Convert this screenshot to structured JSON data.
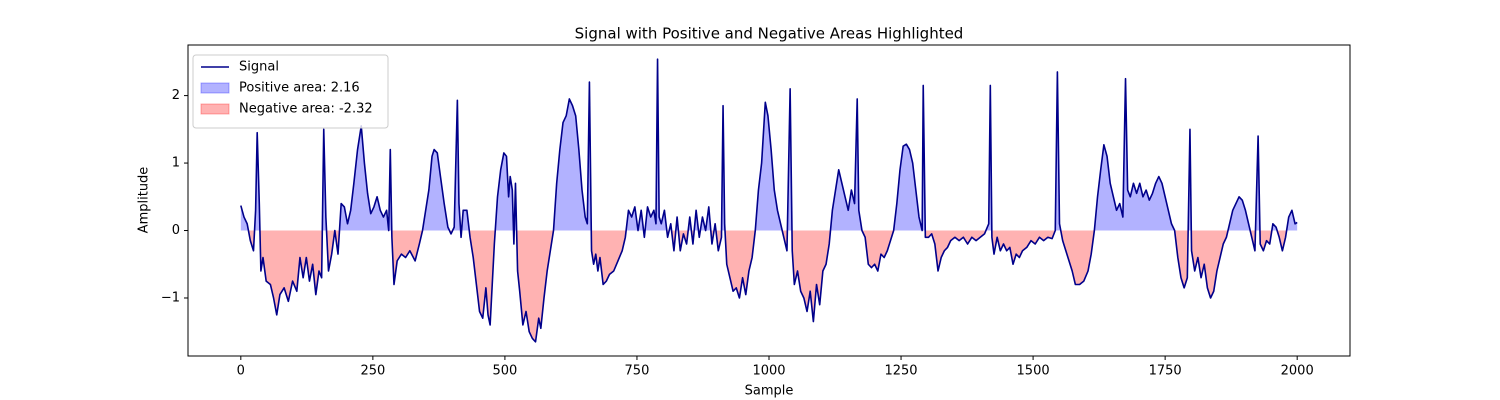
{
  "chart_data": {
    "type": "line",
    "title": "Signal with Positive and Negative Areas Highlighted",
    "xlabel": "Sample",
    "ylabel": "Amplitude",
    "x": [
      0,
      6,
      12,
      18,
      24,
      28,
      31,
      35,
      38,
      42,
      48,
      56,
      62,
      68,
      74,
      82,
      90,
      98,
      106,
      112,
      118,
      124,
      130,
      136,
      142,
      148,
      153,
      157,
      161,
      166,
      172,
      178,
      184,
      190,
      196,
      202,
      208,
      214,
      221,
      228,
      234,
      240,
      246,
      252,
      258,
      264,
      270,
      276,
      280,
      283,
      286,
      290,
      296,
      304,
      312,
      320,
      330,
      338,
      344,
      350,
      356,
      362,
      366,
      372,
      378,
      385,
      392,
      398,
      404,
      410,
      413,
      417,
      421,
      428,
      434,
      440,
      446,
      452,
      458,
      464,
      468,
      472,
      476,
      480,
      486,
      492,
      498,
      503,
      507,
      510,
      514,
      517,
      520,
      524,
      528,
      534,
      540,
      546,
      552,
      558,
      564,
      568,
      574,
      580,
      586,
      592,
      598,
      604,
      610,
      616,
      622,
      628,
      634,
      640,
      646,
      652,
      656,
      660,
      664,
      668,
      672,
      676,
      680,
      686,
      692,
      698,
      706,
      714,
      722,
      728,
      734,
      740,
      746,
      752,
      758,
      764,
      770,
      776,
      782,
      786,
      789,
      792,
      796,
      802,
      808,
      814,
      820,
      826,
      832,
      838,
      844,
      850,
      856,
      862,
      868,
      874,
      880,
      886,
      892,
      898,
      904,
      910,
      913,
      916,
      920,
      926,
      932,
      938,
      944,
      950,
      956,
      962,
      968,
      974,
      980,
      986,
      993,
      998,
      1004,
      1010,
      1016,
      1022,
      1028,
      1034,
      1040,
      1044,
      1048,
      1054,
      1060,
      1066,
      1072,
      1078,
      1084,
      1090,
      1096,
      1102,
      1108,
      1114,
      1120,
      1126,
      1132,
      1138,
      1144,
      1150,
      1156,
      1162,
      1167,
      1170,
      1176,
      1182,
      1188,
      1194,
      1200,
      1206,
      1212,
      1218,
      1224,
      1230,
      1236,
      1242,
      1248,
      1254,
      1260,
      1266,
      1272,
      1278,
      1284,
      1290,
      1292,
      1296,
      1302,
      1308,
      1314,
      1320,
      1326,
      1332,
      1338,
      1344,
      1352,
      1360,
      1368,
      1376,
      1384,
      1392,
      1400,
      1408,
      1416,
      1419,
      1422,
      1426,
      1432,
      1438,
      1444,
      1450,
      1456,
      1462,
      1468,
      1474,
      1480,
      1488,
      1496,
      1504,
      1512,
      1520,
      1528,
      1536,
      1542,
      1546,
      1550,
      1556,
      1562,
      1568,
      1574,
      1580,
      1588,
      1596,
      1604,
      1610,
      1616,
      1622,
      1628,
      1634,
      1640,
      1646,
      1652,
      1658,
      1664,
      1670,
      1675,
      1679,
      1684,
      1690,
      1696,
      1702,
      1708,
      1714,
      1720,
      1726,
      1732,
      1738,
      1744,
      1750,
      1756,
      1762,
      1768,
      1774,
      1780,
      1786,
      1792,
      1797,
      1800,
      1806,
      1812,
      1818,
      1824,
      1830,
      1836,
      1842,
      1848,
      1854,
      1860,
      1866,
      1872,
      1878,
      1884,
      1890,
      1896,
      1902,
      1908,
      1914,
      1920,
      1926,
      1930,
      1936,
      1942,
      1948,
      1954,
      1960,
      1966,
      1972,
      1978,
      1984,
      1990,
      1996,
      2000
    ],
    "series": [
      {
        "name": "Signal",
        "color": "#00008b",
        "values": [
          0.37,
          0.2,
          0.1,
          -0.15,
          -0.3,
          0.3,
          1.45,
          0.4,
          -0.6,
          -0.4,
          -0.75,
          -0.8,
          -1.0,
          -1.25,
          -0.95,
          -0.85,
          -1.05,
          -0.75,
          -0.9,
          -0.4,
          -0.7,
          -0.4,
          -0.75,
          -0.5,
          -0.95,
          -0.6,
          -0.7,
          1.5,
          0.2,
          -0.6,
          -0.35,
          0.0,
          -0.35,
          0.4,
          0.35,
          0.1,
          0.3,
          0.7,
          1.2,
          1.55,
          1.0,
          0.55,
          0.25,
          0.35,
          0.5,
          0.3,
          0.2,
          0.3,
          0.0,
          1.2,
          -0.1,
          -0.8,
          -0.45,
          -0.35,
          -0.4,
          -0.3,
          -0.45,
          -0.2,
          0.0,
          0.3,
          0.6,
          1.1,
          1.2,
          1.15,
          0.8,
          0.4,
          0.05,
          -0.05,
          0.05,
          1.93,
          0.4,
          -0.1,
          0.3,
          0.3,
          -0.1,
          -0.4,
          -0.8,
          -1.2,
          -1.3,
          -0.85,
          -1.25,
          -1.4,
          -0.8,
          -0.2,
          0.5,
          0.9,
          1.15,
          1.1,
          0.5,
          0.8,
          0.6,
          -0.2,
          0.7,
          -0.6,
          -0.9,
          -1.4,
          -1.2,
          -1.5,
          -1.6,
          -1.65,
          -1.3,
          -1.45,
          -1.0,
          -0.6,
          -0.3,
          0.0,
          0.7,
          1.2,
          1.6,
          1.7,
          1.95,
          1.85,
          1.7,
          1.2,
          0.6,
          0.2,
          0.1,
          2.2,
          -0.3,
          -0.5,
          -0.35,
          -0.6,
          -0.4,
          -0.8,
          -0.75,
          -0.65,
          -0.6,
          -0.45,
          -0.3,
          -0.1,
          0.3,
          0.2,
          0.35,
          0.0,
          0.3,
          -0.1,
          0.35,
          0.2,
          0.3,
          0.1,
          2.54,
          0.2,
          0.1,
          0.3,
          -0.1,
          0.1,
          -0.3,
          0.2,
          -0.3,
          -0.05,
          -0.2,
          0.2,
          -0.2,
          0.3,
          -0.1,
          0.2,
          0.0,
          0.35,
          -0.2,
          0.1,
          -0.3,
          -0.1,
          1.85,
          0.1,
          -0.5,
          -0.7,
          -0.9,
          -0.85,
          -1.0,
          -0.7,
          -0.95,
          -0.6,
          -0.4,
          0.0,
          0.6,
          1.0,
          1.9,
          1.7,
          1.2,
          0.6,
          0.3,
          0.1,
          -0.1,
          -0.3,
          2.1,
          -0.3,
          -0.8,
          -0.6,
          -0.9,
          -1.0,
          -1.2,
          -0.9,
          -1.35,
          -0.8,
          -1.1,
          -0.6,
          -0.5,
          -0.2,
          0.3,
          0.6,
          0.9,
          0.7,
          0.5,
          0.3,
          0.6,
          0.4,
          1.95,
          0.3,
          0.0,
          -0.1,
          -0.5,
          -0.55,
          -0.5,
          -0.6,
          -0.35,
          -0.4,
          -0.3,
          -0.15,
          0.0,
          0.4,
          0.9,
          1.25,
          1.28,
          1.2,
          1.0,
          0.6,
          0.2,
          0.0,
          2.15,
          -0.1,
          -0.1,
          -0.05,
          -0.2,
          -0.6,
          -0.4,
          -0.3,
          -0.25,
          -0.15,
          -0.1,
          -0.15,
          -0.1,
          -0.2,
          -0.1,
          -0.15,
          -0.1,
          -0.05,
          0.1,
          2.15,
          -0.1,
          -0.35,
          -0.1,
          -0.3,
          -0.2,
          -0.3,
          -0.25,
          -0.5,
          -0.35,
          -0.4,
          -0.3,
          -0.25,
          -0.15,
          -0.2,
          -0.1,
          -0.15,
          -0.1,
          -0.12,
          0.0,
          2.35,
          0.1,
          -0.15,
          -0.3,
          -0.45,
          -0.6,
          -0.8,
          -0.8,
          -0.75,
          -0.6,
          -0.35,
          0.0,
          0.5,
          0.9,
          1.27,
          1.1,
          0.7,
          0.5,
          0.3,
          0.4,
          0.2,
          2.25,
          0.6,
          0.5,
          0.7,
          0.55,
          0.7,
          0.5,
          0.6,
          0.45,
          0.55,
          0.7,
          0.8,
          0.7,
          0.5,
          0.3,
          0.1,
          0.0,
          -0.4,
          -0.7,
          -0.85,
          -0.7,
          1.5,
          -0.3,
          -0.6,
          -0.4,
          -0.7,
          -0.5,
          -0.85,
          -1.0,
          -0.9,
          -0.6,
          -0.4,
          -0.2,
          -0.1,
          0.1,
          0.3,
          0.4,
          0.5,
          0.45,
          0.3,
          0.1,
          -0.1,
          -0.3,
          1.4,
          -0.2,
          -0.3,
          -0.15,
          -0.2,
          0.1,
          0.05,
          -0.1,
          -0.3,
          -0.1,
          0.2,
          0.3,
          0.1,
          0.12
        ]
      }
    ],
    "fills": [
      {
        "name": "Positive area: 2.16",
        "color": "blue",
        "opacity": 0.3,
        "where": "positive"
      },
      {
        "name": "Negative area: -2.32",
        "color": "red",
        "opacity": 0.3,
        "where": "negative"
      }
    ],
    "xlim": [
      -100,
      2100
    ],
    "ylim": [
      -1.86,
      2.75
    ],
    "xticks": [
      0,
      250,
      500,
      750,
      1000,
      1250,
      1500,
      1750,
      2000
    ],
    "yticks": [
      {
        "value": -1,
        "label": "−1"
      },
      0,
      1,
      2
    ],
    "grid": false,
    "legend": "upper left"
  }
}
